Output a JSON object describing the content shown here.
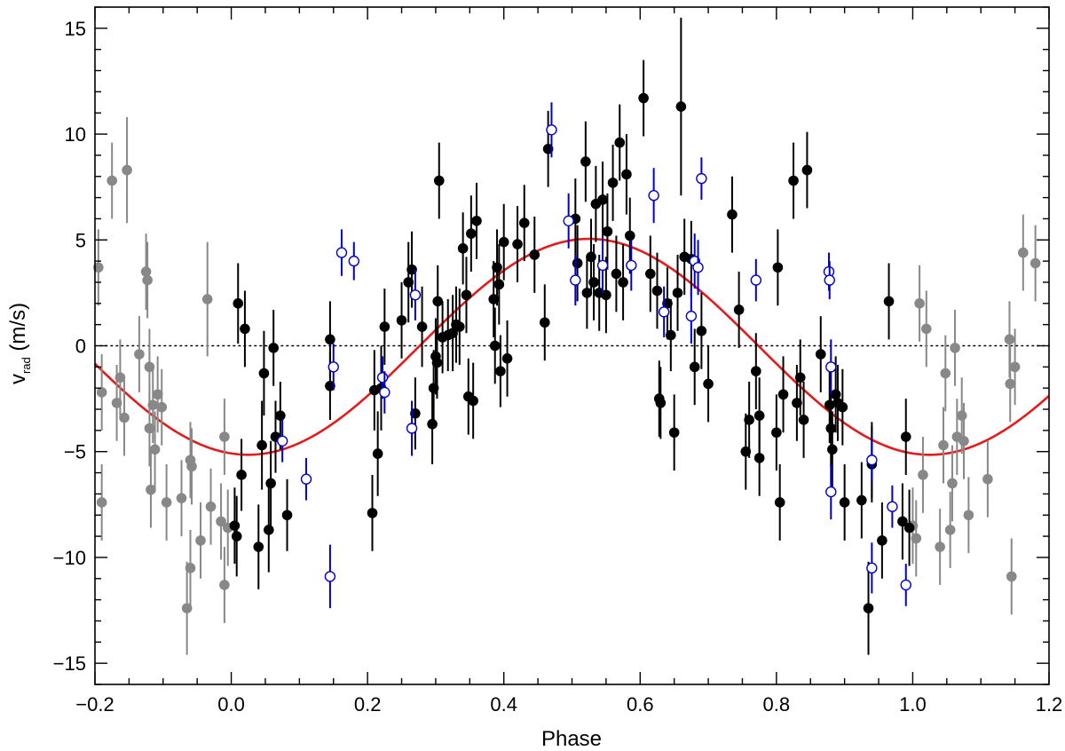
{
  "chart_data": {
    "type": "scatter",
    "title": "",
    "xlabel": "Phase",
    "ylabel_main": "v",
    "ylabel_sub": "rad",
    "ylabel_unit": " (m/s)",
    "xlim": [
      -0.2,
      1.2
    ],
    "ylim": [
      -16,
      16
    ],
    "x_ticks": [
      -0.2,
      0.0,
      0.2,
      0.4,
      0.6,
      0.8,
      1.0,
      1.2
    ],
    "x_tick_labels": [
      "−0.2",
      "0.0",
      "0.2",
      "0.4",
      "0.6",
      "0.8",
      "1.0",
      "1.2"
    ],
    "y_ticks": [
      -15,
      -10,
      -5,
      0,
      5,
      10,
      15
    ],
    "y_tick_labels": [
      "−15",
      "−10",
      "−5",
      "0",
      "5",
      "10",
      "15"
    ],
    "grid": false,
    "zero_line": {
      "y": 0,
      "style": "dotted",
      "color": "#000000"
    },
    "model": {
      "type": "sine",
      "amplitude": 5.1,
      "offset": -0.05,
      "phase_of_max": 0.525,
      "color": "#e41a1c"
    },
    "series": [
      {
        "style": "filled",
        "color": "#000000",
        "points": [
          [
            0.01,
            2.0,
            1.9
          ],
          [
            0.02,
            0.8,
            1.8
          ],
          [
            0.005,
            -8.5,
            1.8
          ],
          [
            0.008,
            -9.0,
            1.9
          ],
          [
            0.015,
            -6.1,
            1.7
          ],
          [
            0.04,
            -9.5,
            2.0
          ],
          [
            0.045,
            -4.7,
            2.1
          ],
          [
            0.048,
            -1.3,
            2.0
          ],
          [
            0.055,
            -8.7,
            2.0
          ],
          [
            0.058,
            -6.5,
            2.0
          ],
          [
            0.062,
            -0.1,
            1.8
          ],
          [
            0.065,
            -4.3,
            1.7
          ],
          [
            0.072,
            -3.3,
            1.6
          ],
          [
            0.082,
            -8.0,
            1.7
          ],
          [
            0.145,
            0.3,
            1.8
          ],
          [
            0.145,
            -1.9,
            1.6
          ],
          [
            0.207,
            -7.9,
            1.8
          ],
          [
            0.21,
            -2.1,
            1.9
          ],
          [
            0.215,
            -5.1,
            2.0
          ],
          [
            0.22,
            -2.0,
            2.0
          ],
          [
            0.225,
            0.9,
            1.8
          ],
          [
            0.25,
            1.2,
            1.8
          ],
          [
            0.26,
            3.0,
            1.9
          ],
          [
            0.265,
            3.6,
            1.8
          ],
          [
            0.27,
            -3.2,
            1.7
          ],
          [
            0.28,
            0.9,
            1.9
          ],
          [
            0.295,
            -3.7,
            1.9
          ],
          [
            0.297,
            -2.0,
            1.8
          ],
          [
            0.3,
            -0.5,
            1.8
          ],
          [
            0.302,
            -0.8,
            1.7
          ],
          [
            0.303,
            2.1,
            1.7
          ],
          [
            0.305,
            7.8,
            1.8
          ],
          [
            0.31,
            0.4,
            1.7
          ],
          [
            0.318,
            0.5,
            1.7
          ],
          [
            0.325,
            0.6,
            1.8
          ],
          [
            0.33,
            1.0,
            1.8
          ],
          [
            0.335,
            0.9,
            1.8
          ],
          [
            0.34,
            4.6,
            1.7
          ],
          [
            0.345,
            2.4,
            1.8
          ],
          [
            0.348,
            -2.4,
            1.8
          ],
          [
            0.352,
            5.3,
            1.8
          ],
          [
            0.355,
            -2.6,
            1.8
          ],
          [
            0.36,
            5.9,
            1.8
          ],
          [
            0.385,
            2.2,
            1.8
          ],
          [
            0.387,
            0.0,
            1.8
          ],
          [
            0.39,
            3.7,
            1.8
          ],
          [
            0.393,
            2.9,
            1.9
          ],
          [
            0.395,
            -1.2,
            1.7
          ],
          [
            0.4,
            4.9,
            1.8
          ],
          [
            0.405,
            -0.6,
            1.8
          ],
          [
            0.42,
            4.8,
            1.8
          ],
          [
            0.43,
            5.8,
            1.8
          ],
          [
            0.445,
            4.3,
            1.8
          ],
          [
            0.465,
            9.3,
            1.8
          ],
          [
            0.46,
            1.1,
            1.8
          ],
          [
            0.505,
            6.0,
            1.9
          ],
          [
            0.508,
            3.9,
            1.8
          ],
          [
            0.52,
            8.7,
            1.9
          ],
          [
            0.522,
            2.5,
            1.7
          ],
          [
            0.528,
            4.2,
            1.8
          ],
          [
            0.532,
            3.0,
            1.8
          ],
          [
            0.535,
            6.7,
            1.8
          ],
          [
            0.54,
            2.5,
            1.8
          ],
          [
            0.545,
            6.9,
            1.8
          ],
          [
            0.55,
            2.4,
            1.8
          ],
          [
            0.552,
            5.4,
            1.8
          ],
          [
            0.56,
            7.7,
            1.8
          ],
          [
            0.565,
            3.4,
            1.8
          ],
          [
            0.57,
            9.6,
            1.8
          ],
          [
            0.58,
            8.1,
            1.9
          ],
          [
            0.575,
            3.0,
            1.8
          ],
          [
            0.585,
            5.2,
            1.8
          ],
          [
            0.605,
            11.7,
            1.8
          ],
          [
            0.615,
            3.4,
            1.8
          ],
          [
            0.625,
            2.6,
            1.8
          ],
          [
            0.628,
            -2.5,
            1.8
          ],
          [
            0.63,
            -2.7,
            1.7
          ],
          [
            0.64,
            2.0,
            1.7
          ],
          [
            0.645,
            0.5,
            1.7
          ],
          [
            0.65,
            -4.1,
            1.8
          ],
          [
            0.655,
            2.5,
            1.8
          ],
          [
            0.66,
            11.3,
            4.2
          ],
          [
            0.665,
            4.2,
            1.8
          ],
          [
            0.675,
            4.1,
            1.8
          ],
          [
            0.68,
            -1.0,
            1.8
          ],
          [
            0.69,
            0.7,
            1.8
          ],
          [
            0.7,
            -1.8,
            1.8
          ],
          [
            0.735,
            6.2,
            1.8
          ],
          [
            0.745,
            1.7,
            1.8
          ],
          [
            0.755,
            -5.0,
            1.8
          ],
          [
            0.76,
            -3.5,
            1.8
          ],
          [
            0.77,
            -1.2,
            1.8
          ],
          [
            0.775,
            -3.3,
            1.8
          ],
          [
            0.775,
            -5.3,
            1.8
          ],
          [
            0.8,
            -4.1,
            1.8
          ],
          [
            0.802,
            3.7,
            1.8
          ],
          [
            0.805,
            -7.4,
            1.8
          ],
          [
            0.81,
            -2.3,
            1.8
          ],
          [
            0.825,
            7.8,
            1.8
          ],
          [
            0.83,
            -2.7,
            1.8
          ],
          [
            0.835,
            -1.5,
            1.8
          ],
          [
            0.84,
            -3.5,
            1.8
          ],
          [
            0.845,
            8.3,
            1.8
          ],
          [
            0.865,
            -0.4,
            1.8
          ],
          [
            0.878,
            -2.8,
            1.8
          ],
          [
            0.88,
            -3.9,
            1.8
          ],
          [
            0.882,
            -4.9,
            1.8
          ],
          [
            0.887,
            -2.3,
            1.8
          ],
          [
            0.89,
            -2.7,
            1.8
          ],
          [
            0.897,
            -2.9,
            1.8
          ],
          [
            0.9,
            -7.4,
            1.8
          ],
          [
            0.925,
            -7.3,
            1.8
          ],
          [
            0.935,
            -12.4,
            2.2
          ],
          [
            0.94,
            -5.4,
            1.8
          ],
          [
            0.94,
            -5.6,
            1.8
          ],
          [
            0.955,
            -9.2,
            1.8
          ],
          [
            0.965,
            2.1,
            1.8
          ],
          [
            0.985,
            -8.3,
            1.8
          ],
          [
            0.99,
            -4.3,
            1.8
          ],
          [
            0.995,
            -8.6,
            1.8
          ]
        ]
      },
      {
        "style": "open",
        "color": "#0000cc",
        "points": [
          [
            0.075,
            -4.5,
            1.0
          ],
          [
            0.11,
            -6.3,
            1.0
          ],
          [
            0.145,
            -10.9,
            1.5
          ],
          [
            0.15,
            -1.0,
            1.1
          ],
          [
            0.162,
            4.4,
            1.1
          ],
          [
            0.18,
            4.0,
            0.9
          ],
          [
            0.222,
            -1.5,
            1.0
          ],
          [
            0.225,
            -2.2,
            1.0
          ],
          [
            0.265,
            -3.9,
            1.3
          ],
          [
            0.27,
            2.4,
            1.2
          ],
          [
            0.495,
            5.9,
            1.3
          ],
          [
            0.505,
            3.1,
            1.2
          ],
          [
            0.47,
            10.2,
            1.3
          ],
          [
            0.545,
            3.8,
            1.3
          ],
          [
            0.587,
            3.8,
            1.2
          ],
          [
            0.62,
            7.1,
            1.3
          ],
          [
            0.635,
            1.6,
            1.2
          ],
          [
            0.675,
            1.4,
            1.3
          ],
          [
            0.68,
            4.0,
            1.3
          ],
          [
            0.685,
            3.7,
            1.3
          ],
          [
            0.69,
            7.9,
            1.0
          ],
          [
            0.77,
            3.1,
            1.0
          ],
          [
            0.877,
            3.5,
            0.9
          ],
          [
            0.878,
            3.1,
            0.9
          ],
          [
            0.88,
            -1.0,
            1.3
          ],
          [
            0.88,
            -6.9,
            1.3
          ],
          [
            0.94,
            -5.4,
            1.0
          ],
          [
            0.94,
            -10.5,
            1.2
          ],
          [
            0.97,
            -7.6,
            1.0
          ],
          [
            0.99,
            -11.3,
            1.0
          ]
        ]
      },
      {
        "style": "filled",
        "color": "#888888",
        "points": [
          [
            -0.195,
            3.7,
            1.8
          ],
          [
            -0.19,
            -2.2,
            1.8
          ],
          [
            -0.19,
            -7.4,
            1.8
          ],
          [
            -0.175,
            7.8,
            1.8
          ],
          [
            -0.168,
            -2.7,
            1.8
          ],
          [
            -0.163,
            -1.5,
            1.8
          ],
          [
            -0.157,
            -3.4,
            1.8
          ],
          [
            -0.153,
            8.3,
            2.5
          ],
          [
            -0.135,
            -0.4,
            1.8
          ],
          [
            -0.125,
            3.5,
            1.8
          ],
          [
            -0.123,
            3.1,
            1.8
          ],
          [
            -0.12,
            -1.0,
            1.8
          ],
          [
            -0.12,
            -3.9,
            1.8
          ],
          [
            -0.118,
            -6.8,
            1.8
          ],
          [
            -0.115,
            -2.8,
            1.8
          ],
          [
            -0.112,
            -4.9,
            1.8
          ],
          [
            -0.108,
            -2.3,
            1.8
          ],
          [
            -0.102,
            -2.9,
            1.8
          ],
          [
            -0.095,
            -7.4,
            1.8
          ],
          [
            -0.073,
            -7.2,
            1.8
          ],
          [
            -0.065,
            -12.4,
            2.2
          ],
          [
            -0.06,
            -5.4,
            1.8
          ],
          [
            -0.06,
            -10.5,
            1.8
          ],
          [
            -0.058,
            -5.7,
            1.8
          ],
          [
            -0.045,
            -9.2,
            1.8
          ],
          [
            -0.035,
            2.2,
            2.7
          ],
          [
            -0.03,
            -7.6,
            1.8
          ],
          [
            -0.015,
            -8.3,
            1.8
          ],
          [
            -0.01,
            -4.3,
            1.8
          ],
          [
            -0.01,
            -11.3,
            1.8
          ],
          [
            -0.005,
            -8.6,
            1.8
          ],
          [
            1.0,
            -8.5,
            1.8
          ],
          [
            1.005,
            -9.1,
            1.8
          ],
          [
            1.01,
            2.0,
            1.8
          ],
          [
            1.015,
            -6.1,
            1.8
          ],
          [
            1.02,
            0.8,
            1.8
          ],
          [
            1.04,
            -9.5,
            1.8
          ],
          [
            1.045,
            -4.7,
            1.8
          ],
          [
            1.048,
            -1.3,
            1.8
          ],
          [
            1.055,
            -8.7,
            1.8
          ],
          [
            1.058,
            -6.5,
            1.8
          ],
          [
            1.062,
            -0.1,
            1.8
          ],
          [
            1.065,
            -4.3,
            1.8
          ],
          [
            1.072,
            -3.3,
            1.8
          ],
          [
            1.075,
            -4.5,
            1.8
          ],
          [
            1.082,
            -8.0,
            1.8
          ],
          [
            1.11,
            -6.3,
            1.8
          ],
          [
            1.142,
            0.3,
            1.8
          ],
          [
            1.143,
            -1.8,
            1.8
          ],
          [
            1.145,
            -10.9,
            1.8
          ],
          [
            1.15,
            -1.0,
            1.8
          ],
          [
            1.162,
            4.4,
            1.8
          ],
          [
            1.18,
            3.9,
            1.8
          ]
        ]
      }
    ]
  }
}
